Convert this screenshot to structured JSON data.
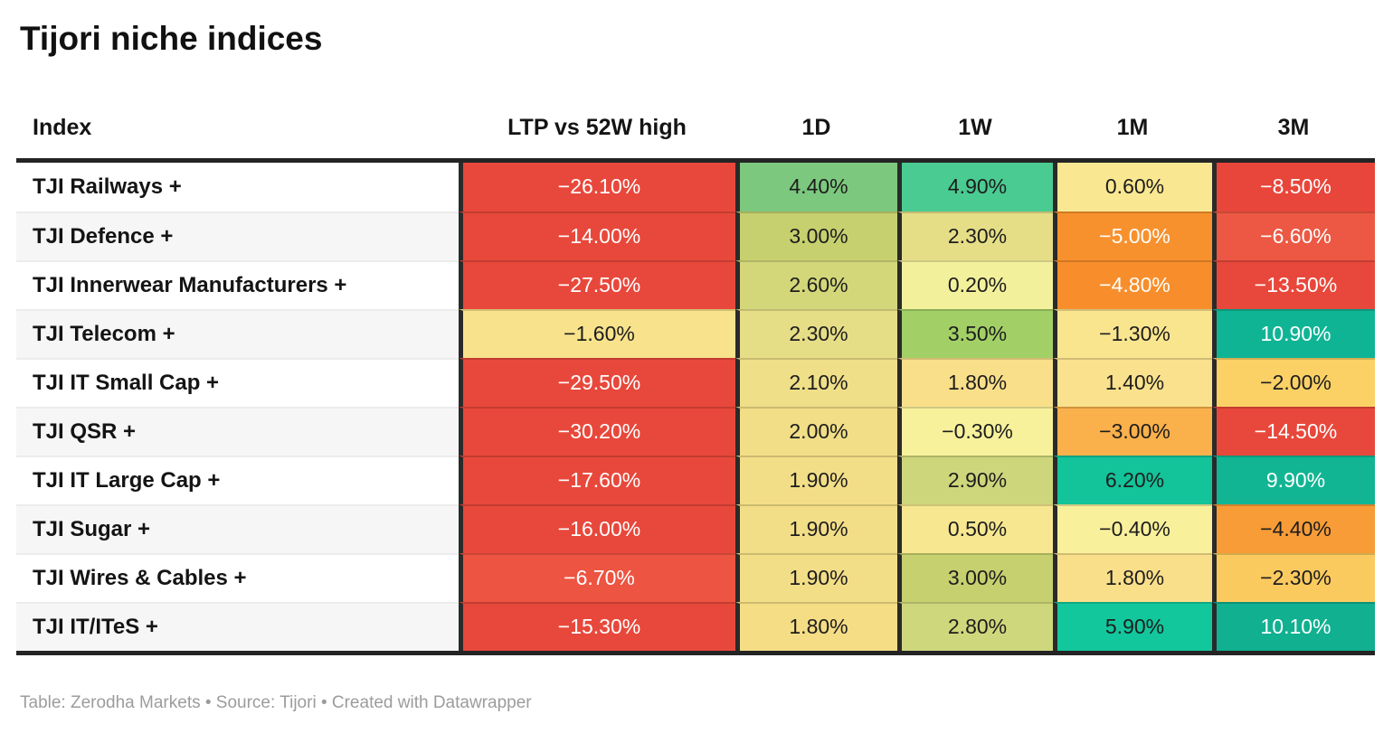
{
  "title": "Tijori niche indices",
  "footer": "Table: Zerodha Markets • Source: Tijori • Created with Datawrapper",
  "table": {
    "columns": [
      "Index",
      "LTP vs 52W high",
      "1D",
      "1W",
      "1M",
      "3M"
    ],
    "rows": [
      {
        "index": "TJI Railways +",
        "cells": [
          {
            "v": "−26.10%",
            "bg": "#e8483b",
            "fg": "#ffffff"
          },
          {
            "v": "4.40%",
            "bg": "#7cc87e",
            "fg": "#1d1d1d"
          },
          {
            "v": "4.90%",
            "bg": "#4acb91",
            "fg": "#1d1d1d"
          },
          {
            "v": "0.60%",
            "bg": "#fae791",
            "fg": "#1d1d1d"
          },
          {
            "v": "−8.50%",
            "bg": "#e8463a",
            "fg": "#ffffff"
          }
        ]
      },
      {
        "index": "TJI Defence +",
        "cells": [
          {
            "v": "−14.00%",
            "bg": "#e8483b",
            "fg": "#ffffff"
          },
          {
            "v": "3.00%",
            "bg": "#c6d06e",
            "fg": "#1d1d1d"
          },
          {
            "v": "2.30%",
            "bg": "#e6de87",
            "fg": "#1d1d1d"
          },
          {
            "v": "−5.00%",
            "bg": "#f7912e",
            "fg": "#ffffff"
          },
          {
            "v": "−6.60%",
            "bg": "#ec5843",
            "fg": "#ffffff"
          }
        ]
      },
      {
        "index": "TJI Innerwear Manufacturers +",
        "cells": [
          {
            "v": "−27.50%",
            "bg": "#e8483b",
            "fg": "#ffffff"
          },
          {
            "v": "2.60%",
            "bg": "#d3d77a",
            "fg": "#1d1d1d"
          },
          {
            "v": "0.20%",
            "bg": "#f3f09c",
            "fg": "#1d1d1d"
          },
          {
            "v": "−4.80%",
            "bg": "#f78e2b",
            "fg": "#ffffff"
          },
          {
            "v": "−13.50%",
            "bg": "#e8483b",
            "fg": "#ffffff"
          }
        ]
      },
      {
        "index": "TJI Telecom +",
        "cells": [
          {
            "v": "−1.60%",
            "bg": "#f8e38c",
            "fg": "#1d1d1d"
          },
          {
            "v": "2.30%",
            "bg": "#e6de87",
            "fg": "#1d1d1d"
          },
          {
            "v": "3.50%",
            "bg": "#a2d066",
            "fg": "#1d1d1d"
          },
          {
            "v": "−1.30%",
            "bg": "#fae58f",
            "fg": "#1d1d1d"
          },
          {
            "v": "10.90%",
            "bg": "#0fb495",
            "fg": "#ffffff"
          }
        ]
      },
      {
        "index": "TJI IT Small Cap +",
        "cells": [
          {
            "v": "−29.50%",
            "bg": "#e8483b",
            "fg": "#ffffff"
          },
          {
            "v": "2.10%",
            "bg": "#efdf88",
            "fg": "#1d1d1d"
          },
          {
            "v": "1.80%",
            "bg": "#fadf8a",
            "fg": "#1d1d1d"
          },
          {
            "v": "1.40%",
            "bg": "#fae18d",
            "fg": "#1d1d1d"
          },
          {
            "v": "−2.00%",
            "bg": "#fbd166",
            "fg": "#1d1d1d"
          }
        ]
      },
      {
        "index": "TJI QSR +",
        "cells": [
          {
            "v": "−30.20%",
            "bg": "#e8483b",
            "fg": "#ffffff"
          },
          {
            "v": "2.00%",
            "bg": "#f1de87",
            "fg": "#1d1d1d"
          },
          {
            "v": "−0.30%",
            "bg": "#f7f19c",
            "fg": "#1d1d1d"
          },
          {
            "v": "−3.00%",
            "bg": "#fab04b",
            "fg": "#1d1d1d"
          },
          {
            "v": "−14.50%",
            "bg": "#e8483b",
            "fg": "#ffffff"
          }
        ]
      },
      {
        "index": "TJI IT Large Cap +",
        "cells": [
          {
            "v": "−17.60%",
            "bg": "#e8483b",
            "fg": "#ffffff"
          },
          {
            "v": "1.90%",
            "bg": "#f3de88",
            "fg": "#1d1d1d"
          },
          {
            "v": "2.90%",
            "bg": "#cdd67b",
            "fg": "#1d1d1d"
          },
          {
            "v": "6.20%",
            "bg": "#13c399",
            "fg": "#1d1d1d"
          },
          {
            "v": "9.90%",
            "bg": "#12b593",
            "fg": "#ffffff"
          }
        ]
      },
      {
        "index": "TJI Sugar +",
        "cells": [
          {
            "v": "−16.00%",
            "bg": "#e8483b",
            "fg": "#ffffff"
          },
          {
            "v": "1.90%",
            "bg": "#f3de88",
            "fg": "#1d1d1d"
          },
          {
            "v": "0.50%",
            "bg": "#f7e790",
            "fg": "#1d1d1d"
          },
          {
            "v": "−0.40%",
            "bg": "#f9f09c",
            "fg": "#1d1d1d"
          },
          {
            "v": "−4.40%",
            "bg": "#f89c37",
            "fg": "#1d1d1d"
          }
        ]
      },
      {
        "index": "TJI Wires & Cables +",
        "cells": [
          {
            "v": "−6.70%",
            "bg": "#ed5441",
            "fg": "#ffffff"
          },
          {
            "v": "1.90%",
            "bg": "#f3de88",
            "fg": "#1d1d1d"
          },
          {
            "v": "3.00%",
            "bg": "#c6d06e",
            "fg": "#1d1d1d"
          },
          {
            "v": "1.80%",
            "bg": "#fadf8a",
            "fg": "#1d1d1d"
          },
          {
            "v": "−2.30%",
            "bg": "#fbca5f",
            "fg": "#1d1d1d"
          }
        ]
      },
      {
        "index": "TJI IT/ITeS +",
        "cells": [
          {
            "v": "−15.30%",
            "bg": "#e8483b",
            "fg": "#ffffff"
          },
          {
            "v": "1.80%",
            "bg": "#f5dd85",
            "fg": "#1d1d1d"
          },
          {
            "v": "2.80%",
            "bg": "#cfd77c",
            "fg": "#1d1d1d"
          },
          {
            "v": "5.90%",
            "bg": "#13c79d",
            "fg": "#1d1d1d"
          },
          {
            "v": "10.10%",
            "bg": "#10b090",
            "fg": "#ffffff"
          }
        ]
      }
    ]
  },
  "chart_data": {
    "type": "table",
    "title": "Tijori niche indices",
    "columns": [
      "Index",
      "LTP vs 52W high",
      "1D",
      "1W",
      "1M",
      "3M"
    ],
    "rows": [
      [
        "TJI Railways +",
        -26.1,
        4.4,
        4.9,
        0.6,
        -8.5
      ],
      [
        "TJI Defence +",
        -14.0,
        3.0,
        2.3,
        -5.0,
        -6.6
      ],
      [
        "TJI Innerwear Manufacturers +",
        -27.5,
        2.6,
        0.2,
        -4.8,
        -13.5
      ],
      [
        "TJI Telecom +",
        -1.6,
        2.3,
        3.5,
        -1.3,
        10.9
      ],
      [
        "TJI IT Small Cap +",
        -29.5,
        2.1,
        1.8,
        1.4,
        -2.0
      ],
      [
        "TJI QSR +",
        -30.2,
        2.0,
        -0.3,
        -3.0,
        -14.5
      ],
      [
        "TJI IT Large Cap +",
        -17.6,
        1.9,
        2.9,
        6.2,
        9.9
      ],
      [
        "TJI Sugar +",
        -16.0,
        1.9,
        0.5,
        -0.4,
        -4.4
      ],
      [
        "TJI Wires & Cables +",
        -6.7,
        1.9,
        3.0,
        1.8,
        -2.3
      ],
      [
        "TJI IT/ITeS +",
        -15.3,
        1.8,
        2.8,
        5.9,
        10.1
      ]
    ],
    "units": "percent",
    "style": "heatmap cells, diverging red-yellow-green scale, negative=red/orange, positive=green/teal",
    "footer": "Table: Zerodha Markets • Source: Tijori • Created with Datawrapper"
  }
}
